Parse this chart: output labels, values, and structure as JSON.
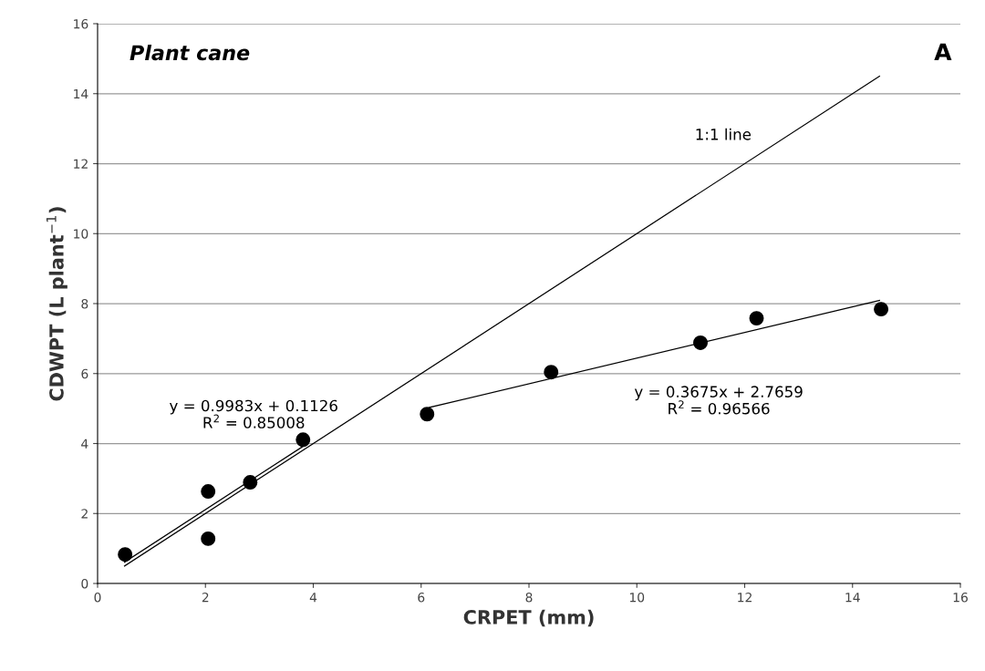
{
  "chart_data": {
    "type": "scatter",
    "xlabel": "CRPET (mm)",
    "ylabel": "CDWPT (L plant$^{−1}$)",
    "series": [
      {
        "color": "#000000",
        "marker": "circle",
        "x": [
          0.51,
          2.05,
          2.05,
          2.83,
          3.81,
          6.11,
          8.41,
          11.18,
          12.22,
          14.53
        ],
        "values": [
          0.83,
          2.63,
          1.28,
          2.89,
          4.11,
          4.84,
          6.04,
          6.88,
          7.58,
          7.84
        ]
      },
      {
        "type": "line",
        "color": "#000000",
        "x": [
          0.5,
          3.8
        ],
        "values": [
          0.61,
          3.91
        ]
      },
      {
        "type": "line",
        "color": "#000000",
        "x": [
          6.15,
          14.5
        ],
        "values": [
          5.03,
          8.09
        ]
      },
      {
        "type": "line",
        "color": "#000000",
        "x": [
          0.5,
          14.5
        ],
        "values": [
          0.5,
          14.5
        ]
      }
    ],
    "title": "Plant cane",
    "annotations": [
      "A",
      "1:1 line",
      "y = 0.9983x + 0.1126\nR$^{2}$ = 0.85008",
      "y = 0.3675x + 2.7659\nR$^{2}$ = 0.96566"
    ],
    "xlim": [
      0,
      16
    ],
    "xticks": [
      0,
      2,
      4,
      6,
      8,
      10,
      12,
      14,
      16
    ],
    "ylim": [
      0,
      16
    ],
    "yticks": [
      0,
      2,
      4,
      6,
      8,
      10,
      12,
      14,
      16
    ],
    "grid": "y",
    "legend": false
  }
}
